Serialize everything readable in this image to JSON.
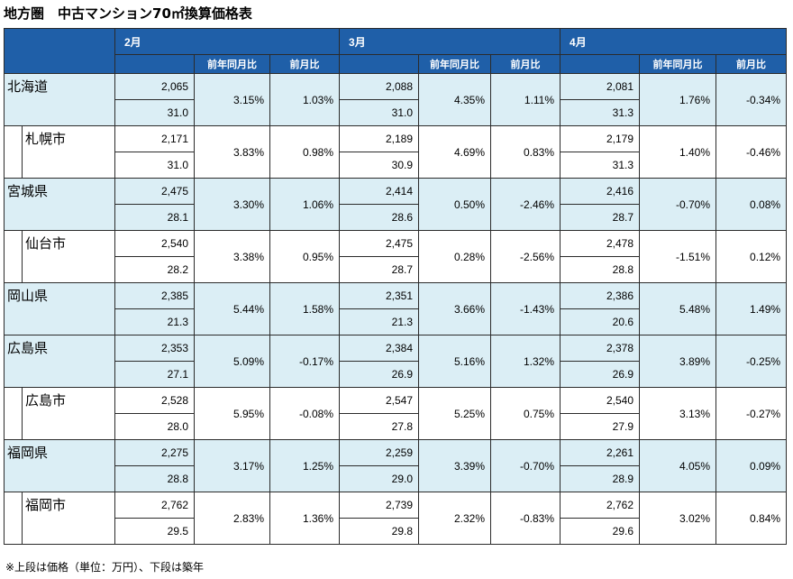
{
  "title": "地方圏　中古マンション70㎡換算価格表",
  "months": [
    "2月",
    "3月",
    "4月"
  ],
  "col_yoy": "前年同月比",
  "col_mom": "前月比",
  "rows": [
    {
      "name": "北海道",
      "city": false,
      "shade": true,
      "d": [
        {
          "price": "2,065",
          "age": "31.0",
          "yoy": "3.15%",
          "mom": "1.03%"
        },
        {
          "price": "2,088",
          "age": "31.0",
          "yoy": "4.35%",
          "mom": "1.11%"
        },
        {
          "price": "2,081",
          "age": "31.3",
          "yoy": "1.76%",
          "mom": "-0.34%"
        }
      ]
    },
    {
      "name": "札幌市",
      "city": true,
      "shade": false,
      "d": [
        {
          "price": "2,171",
          "age": "31.0",
          "yoy": "3.83%",
          "mom": "0.98%"
        },
        {
          "price": "2,189",
          "age": "30.9",
          "yoy": "4.69%",
          "mom": "0.83%"
        },
        {
          "price": "2,179",
          "age": "31.3",
          "yoy": "1.40%",
          "mom": "-0.46%"
        }
      ]
    },
    {
      "name": "宮城県",
      "city": false,
      "shade": true,
      "d": [
        {
          "price": "2,475",
          "age": "28.1",
          "yoy": "3.30%",
          "mom": "1.06%"
        },
        {
          "price": "2,414",
          "age": "28.6",
          "yoy": "0.50%",
          "mom": "-2.46%"
        },
        {
          "price": "2,416",
          "age": "28.7",
          "yoy": "-0.70%",
          "mom": "0.08%"
        }
      ]
    },
    {
      "name": "仙台市",
      "city": true,
      "shade": false,
      "d": [
        {
          "price": "2,540",
          "age": "28.2",
          "yoy": "3.38%",
          "mom": "0.95%"
        },
        {
          "price": "2,475",
          "age": "28.7",
          "yoy": "0.28%",
          "mom": "-2.56%"
        },
        {
          "price": "2,478",
          "age": "28.8",
          "yoy": "-1.51%",
          "mom": "0.12%"
        }
      ]
    },
    {
      "name": "岡山県",
      "city": false,
      "shade": true,
      "d": [
        {
          "price": "2,385",
          "age": "21.3",
          "yoy": "5.44%",
          "mom": "1.58%"
        },
        {
          "price": "2,351",
          "age": "21.3",
          "yoy": "3.66%",
          "mom": "-1.43%"
        },
        {
          "price": "2,386",
          "age": "20.6",
          "yoy": "5.48%",
          "mom": "1.49%"
        }
      ]
    },
    {
      "name": "広島県",
      "city": false,
      "shade": true,
      "d": [
        {
          "price": "2,353",
          "age": "27.1",
          "yoy": "5.09%",
          "mom": "-0.17%"
        },
        {
          "price": "2,384",
          "age": "26.9",
          "yoy": "5.16%",
          "mom": "1.32%"
        },
        {
          "price": "2,378",
          "age": "26.9",
          "yoy": "3.89%",
          "mom": "-0.25%"
        }
      ]
    },
    {
      "name": "広島市",
      "city": true,
      "shade": false,
      "d": [
        {
          "price": "2,528",
          "age": "28.0",
          "yoy": "5.95%",
          "mom": "-0.08%"
        },
        {
          "price": "2,547",
          "age": "27.8",
          "yoy": "5.25%",
          "mom": "0.75%"
        },
        {
          "price": "2,540",
          "age": "27.9",
          "yoy": "3.13%",
          "mom": "-0.27%"
        }
      ]
    },
    {
      "name": "福岡県",
      "city": false,
      "shade": true,
      "d": [
        {
          "price": "2,275",
          "age": "28.8",
          "yoy": "3.17%",
          "mom": "1.25%"
        },
        {
          "price": "2,259",
          "age": "29.0",
          "yoy": "3.39%",
          "mom": "-0.70%"
        },
        {
          "price": "2,261",
          "age": "28.9",
          "yoy": "4.05%",
          "mom": "0.09%"
        }
      ]
    },
    {
      "name": "福岡市",
      "city": true,
      "shade": false,
      "d": [
        {
          "price": "2,762",
          "age": "29.5",
          "yoy": "2.83%",
          "mom": "1.36%"
        },
        {
          "price": "2,739",
          "age": "29.8",
          "yoy": "2.32%",
          "mom": "-0.83%"
        },
        {
          "price": "2,762",
          "age": "29.6",
          "yoy": "3.02%",
          "mom": "0.84%"
        }
      ]
    }
  ],
  "note": "※上段は価格（単位：万円）、下段は築年"
}
